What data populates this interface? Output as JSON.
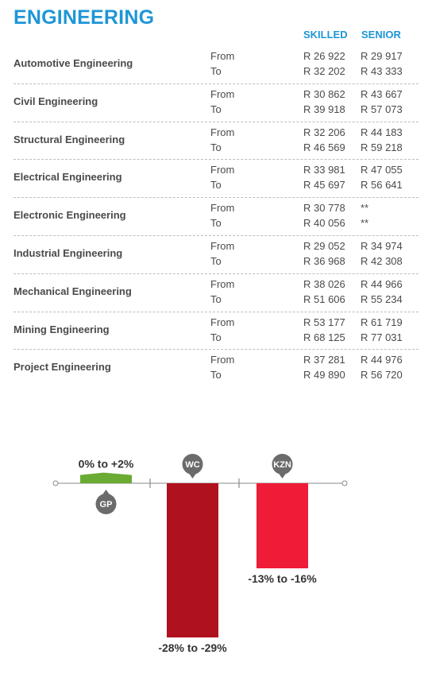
{
  "title": "ENGINEERING",
  "columns": {
    "skilled": "SKILLED",
    "senior": "SENIOR"
  },
  "rows": [
    {
      "name": "Automotive Engineering",
      "from_label": "From",
      "to_label": "To",
      "skilled_from": "R 26 922",
      "skilled_to": "R 32 202",
      "senior_from": "R 29 917",
      "senior_to": "R 43 333"
    },
    {
      "name": "Civil Engineering",
      "from_label": "From",
      "to_label": "To",
      "skilled_from": "R 30 862",
      "skilled_to": "R 39 918",
      "senior_from": "R 43 667",
      "senior_to": "R 57 073"
    },
    {
      "name": "Structural Engineering",
      "from_label": "From",
      "to_label": "To",
      "skilled_from": "R 32 206",
      "skilled_to": "R 46 569",
      "senior_from": "R 44 183",
      "senior_to": "R 59 218"
    },
    {
      "name": "Electrical Engineering",
      "from_label": "From",
      "to_label": "To",
      "skilled_from": "R 33 981",
      "skilled_to": "R 45 697",
      "senior_from": "R 47 055",
      "senior_to": "R 56 641"
    },
    {
      "name": "Electronic Engineering",
      "from_label": "From",
      "to_label": "To",
      "skilled_from": "R 30 778",
      "skilled_to": "R 40 056",
      "senior_from": "**",
      "senior_to": "**"
    },
    {
      "name": "Industrial Engineering",
      "from_label": "From",
      "to_label": "To",
      "skilled_from": "R 29 052",
      "skilled_to": "R 36 968",
      "senior_from": "R 34 974",
      "senior_to": "R 42 308"
    },
    {
      "name": "Mechanical Engineering",
      "from_label": "From",
      "to_label": "To",
      "skilled_from": "R 38 026",
      "skilled_to": "R 51 606",
      "senior_from": "R 44 966",
      "senior_to": "R 55 234"
    },
    {
      "name": "Mining Engineering",
      "from_label": "From",
      "to_label": "To",
      "skilled_from": "R 53 177",
      "skilled_to": "R 68 125",
      "senior_from": "R 61 719",
      "senior_to": "R 77 031"
    },
    {
      "name": "Project Engineering",
      "from_label": "From",
      "to_label": "To",
      "skilled_from": "R 37 281",
      "skilled_to": "R 49 890",
      "senior_from": "R 44 976",
      "senior_to": "R 56 720"
    }
  ],
  "chart_data": {
    "type": "bar",
    "categories": [
      "GP",
      "WC",
      "KZN"
    ],
    "values": [
      2,
      -29,
      -16
    ],
    "labels": [
      "0% to +2%",
      "-28% to -29%",
      "-13% to -16%"
    ],
    "colors": [
      "#6aab33",
      "#b0111f",
      "#ee1c36"
    ],
    "badge_color": "#6b6b6b"
  }
}
